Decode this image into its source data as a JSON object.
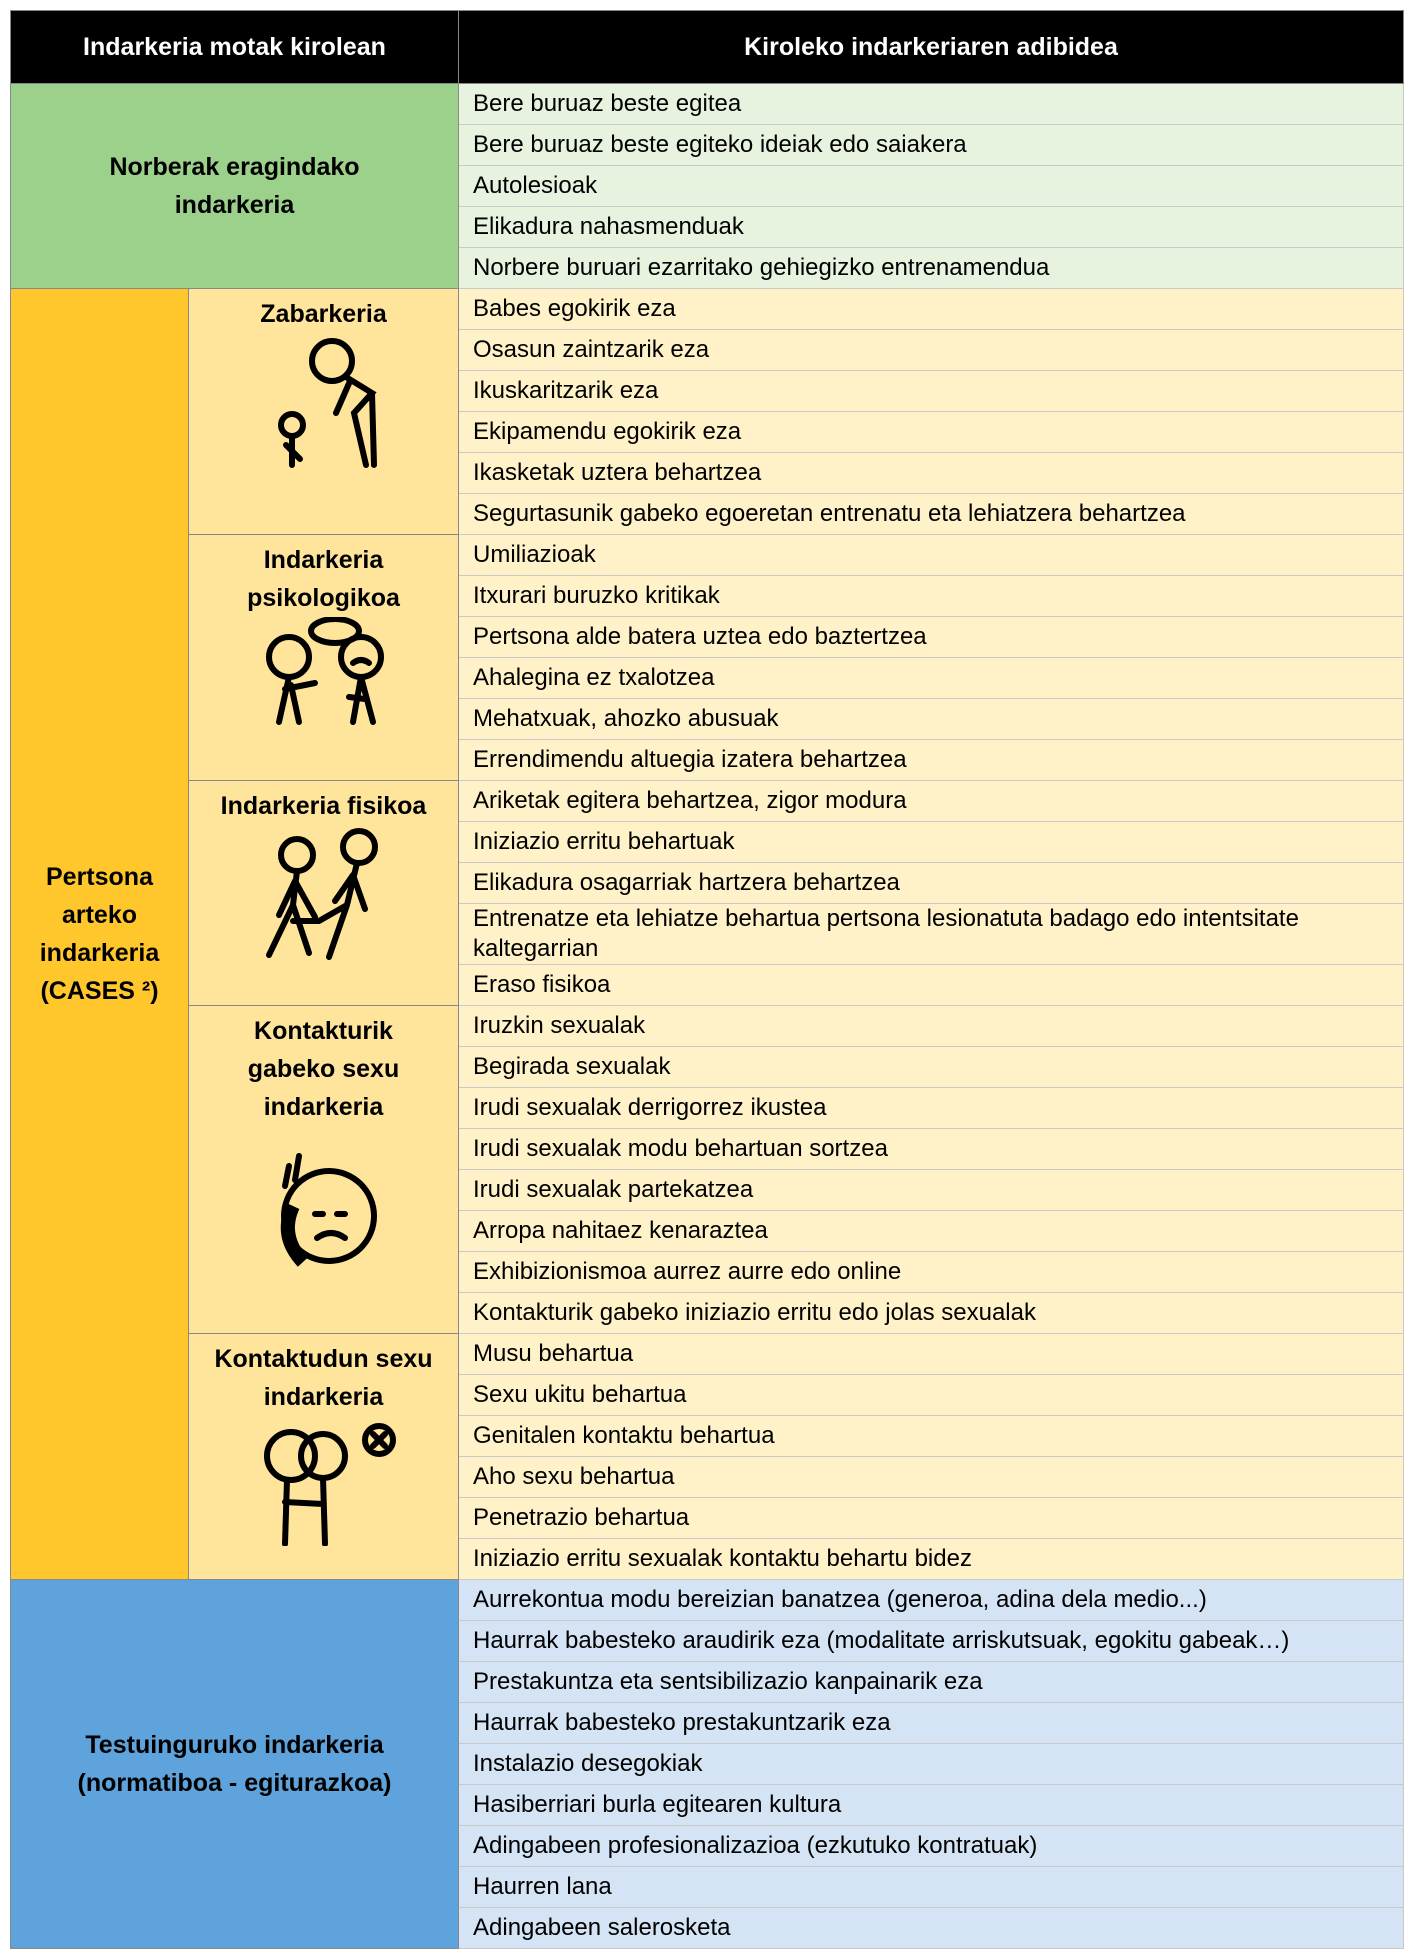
{
  "header": {
    "columns": [
      "Indarkeria motak kirolean",
      "Kiroleko indarkeriaren adibidea"
    ]
  },
  "sections": [
    {
      "label": "Norberak eragindako indarkeria",
      "examples": [
        "Bere buruaz beste egitea",
        "Bere buruaz beste egiteko ideiak edo saiakera",
        "Autolesioak",
        "Elikadura nahasmenduak",
        "Norbere buruari ezarritako gehiegizko entrenamendua"
      ]
    },
    {
      "label": "Pertsona arteko indarkeria (CASES ²)",
      "subsections": [
        {
          "label": "Zabarkeria",
          "examples": [
            "Babes egokirik eza",
            "Osasun zaintzarik eza",
            "Ikuskaritzarik eza",
            "Ekipamendu egokirik eza",
            "Ikasketak uztera behartzea",
            "Segurtasunik gabeko egoeretan entrenatu eta lehiatzera behartzea"
          ]
        },
        {
          "label": "Indarkeria psikologikoa",
          "examples": [
            "Umiliazioak",
            "Itxurari buruzko kritikak",
            "Pertsona alde batera uztea edo baztertzea",
            "Ahalegina ez txalotzea",
            "Mehatxuak, ahozko abusuak",
            "Errendimendu altuegia izatera behartzea"
          ]
        },
        {
          "label": "Indarkeria fisikoa",
          "examples": [
            "Ariketak egitera behartzea, zigor modura",
            "Iniziazio erritu behartuak",
            "Elikadura osagarriak hartzera behartzea",
            "Entrenatze eta lehiatze behartua pertsona lesionatuta badago edo intentsitate kaltegarrian",
            "Eraso fisikoa"
          ]
        },
        {
          "label": "Kontakturik gabeko sexu indarkeria",
          "examples": [
            "Iruzkin sexualak",
            "Begirada sexualak",
            "Irudi sexualak derrigorrez ikustea",
            "Irudi sexualak modu behartuan sortzea",
            "Irudi sexualak partekatzea",
            "Arropa nahitaez kenaraztea",
            "Exhibizionismoa aurrez aurre edo online",
            "Kontakturik gabeko iniziazio erritu edo jolas sexualak"
          ]
        },
        {
          "label": "Kontaktudun sexu indarkeria",
          "examples": [
            "Musu behartua",
            "Sexu ukitu behartua",
            "Genitalen kontaktu behartua",
            "Aho sexu behartua",
            "Penetrazio behartua",
            "Iniziazio erritu sexualak kontaktu behartu bidez"
          ]
        }
      ]
    },
    {
      "label": "Testuinguruko indarkeria (normatiboa - egiturazkoa)",
      "examples": [
        "Aurrekontua modu bereizian banatzea (generoa, adina dela medio...)",
        "Haurrak babesteko araudirik eza (modalitate arriskutsuak, egokitu gabeak…)",
        "Prestakuntza eta sentsibilizazio kanpainarik eza",
        "Haurrak babesteko prestakuntzarik eza",
        "Instalazio desegokiak",
        "Hasiberriari burla egitearen kultura",
        "Adingabeen profesionalizazioa (ezkutuko kontratuak)",
        "Haurren lana",
        "Adingabeen salerosketa"
      ]
    }
  ]
}
